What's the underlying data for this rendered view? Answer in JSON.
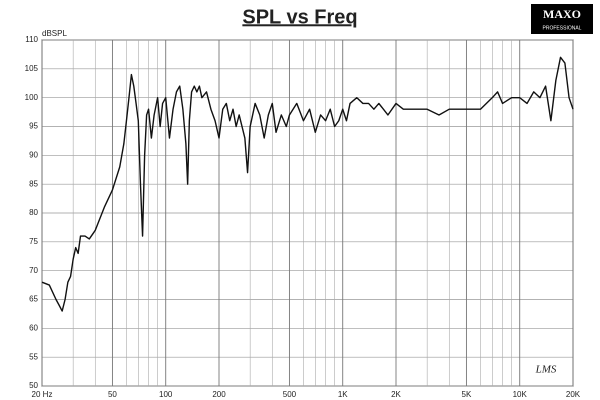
{
  "chart_data": {
    "type": "line",
    "title": "SPL vs Freq",
    "ylabel": "dBSPL",
    "logo": {
      "name": "MAXO",
      "tagline": "PROFESSIONAL"
    },
    "signature": "LMS",
    "xscale": "log",
    "grid": true,
    "color": "#111111",
    "xlim": [
      20,
      20000
    ],
    "ylim": [
      50,
      110
    ],
    "xticks": [
      {
        "value": 20,
        "label": "20 Hz"
      },
      50,
      100,
      200,
      500,
      {
        "value": 1000,
        "label": "1K"
      },
      {
        "value": 2000,
        "label": "2K"
      },
      {
        "value": 5000,
        "label": "5K"
      },
      {
        "value": 10000,
        "label": "10K"
      },
      {
        "value": 20000,
        "label": "20K"
      }
    ],
    "xminor": [
      30,
      40,
      60,
      70,
      80,
      90,
      300,
      400,
      600,
      700,
      800,
      900,
      3000,
      4000,
      6000,
      7000,
      8000,
      9000
    ],
    "yticks": [
      50,
      55,
      60,
      65,
      70,
      75,
      80,
      85,
      90,
      95,
      100,
      105,
      110
    ],
    "x": [
      20,
      22,
      24,
      25,
      26,
      27,
      28,
      29,
      30,
      31,
      32,
      33,
      35,
      37,
      40,
      45,
      50,
      55,
      58,
      60,
      62,
      64,
      66,
      68,
      70,
      72,
      74,
      76,
      78,
      80,
      83,
      86,
      90,
      93,
      96,
      100,
      105,
      110,
      115,
      120,
      125,
      130,
      133,
      136,
      140,
      145,
      150,
      155,
      160,
      170,
      180,
      190,
      200,
      210,
      220,
      230,
      240,
      250,
      260,
      280,
      290,
      300,
      320,
      340,
      360,
      380,
      400,
      420,
      450,
      480,
      500,
      550,
      600,
      650,
      700,
      750,
      800,
      850,
      900,
      950,
      1000,
      1050,
      1100,
      1200,
      1300,
      1400,
      1500,
      1600,
      1800,
      2000,
      2200,
      2500,
      3000,
      3500,
      4000,
      5000,
      6000,
      7000,
      7500,
      8000,
      9000,
      10000,
      11000,
      12000,
      13000,
      14000,
      15000,
      16000,
      17000,
      18000,
      19000,
      20000
    ],
    "values": [
      68,
      67.5,
      65,
      64,
      63,
      65,
      68,
      69,
      72,
      74,
      73,
      76,
      76,
      75.5,
      77,
      81,
      84,
      88,
      92,
      96,
      100,
      104,
      102,
      99,
      96,
      85,
      76,
      90,
      97,
      98,
      93,
      97,
      100,
      95,
      99,
      100,
      93,
      98,
      101,
      102,
      98,
      92,
      85,
      96,
      101,
      102,
      101,
      102,
      100,
      101,
      98,
      96,
      93,
      98,
      99,
      96,
      98,
      95,
      97,
      93,
      87,
      95,
      99,
      97,
      93,
      97,
      99,
      94,
      97,
      95,
      97,
      99,
      96,
      98,
      94,
      97,
      96,
      98,
      95,
      96,
      98,
      96,
      99,
      100,
      99,
      99,
      98,
      99,
      97,
      99,
      98,
      98,
      98,
      97,
      98,
      98,
      98,
      100,
      101,
      99,
      100,
      100,
      99,
      101,
      100,
      102,
      96,
      103,
      107,
      106,
      100,
      98
    ]
  }
}
